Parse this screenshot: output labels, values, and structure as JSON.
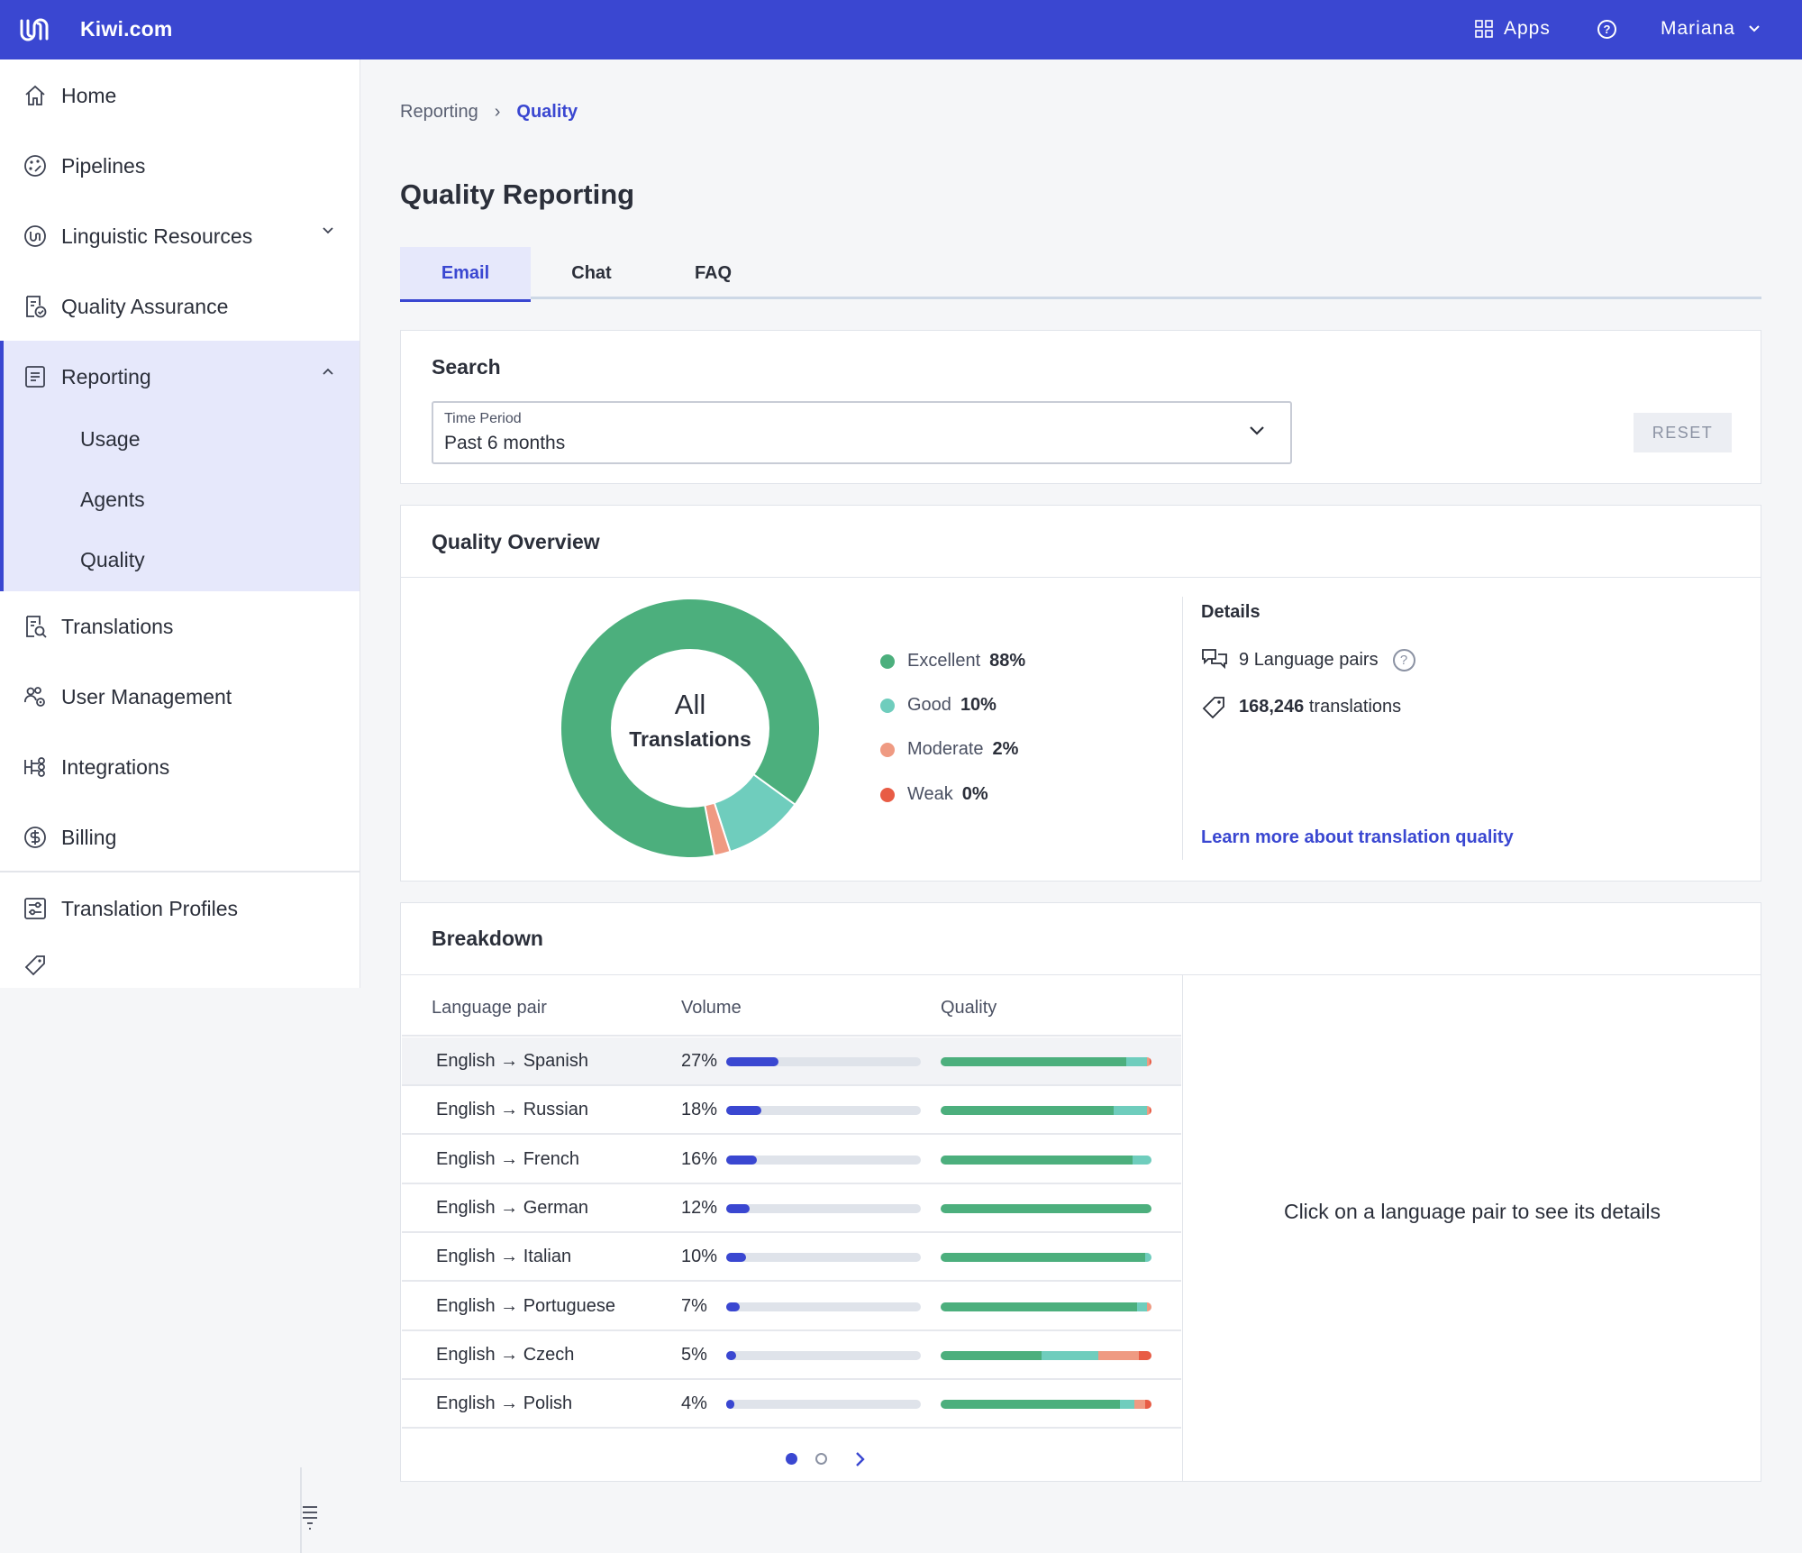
{
  "app": {
    "brand": "Kiwi.com",
    "apps_label": "Apps",
    "help_label": "?",
    "user_name": "Mariana"
  },
  "colors": {
    "primary": "#3a47d1",
    "excellent": "#4caf7d",
    "good": "#6fcdbd",
    "moderate": "#ef9a82",
    "weak": "#e85c45"
  },
  "sidebar": {
    "items": [
      {
        "label": "Home",
        "icon": "home-icon"
      },
      {
        "label": "Pipelines",
        "icon": "palette-icon"
      },
      {
        "label": "Linguistic Resources",
        "icon": "kiwi-brand-icon"
      },
      {
        "label": "Quality Assurance",
        "icon": "document-check-icon"
      },
      {
        "label": "Reporting",
        "icon": "report-icon"
      },
      {
        "label": "Translations",
        "icon": "document-search-icon"
      },
      {
        "label": "User Management",
        "icon": "users-gear-icon"
      },
      {
        "label": "Integrations",
        "icon": "integrations-icon"
      },
      {
        "label": "Billing",
        "icon": "dollar-icon"
      },
      {
        "label": "Translation Profiles",
        "icon": "sliders-icon"
      }
    ],
    "reporting_sub": [
      "Usage",
      "Agents",
      "Quality"
    ]
  },
  "breadcrumb": {
    "parent": "Reporting",
    "separator": "›",
    "current": "Quality"
  },
  "page_title": "Quality Reporting",
  "tabs": [
    "Email",
    "Chat",
    "FAQ"
  ],
  "search": {
    "title": "Search",
    "time_period_label": "Time Period",
    "time_period_value": "Past 6 months",
    "reset_label": "RESET"
  },
  "overview": {
    "title": "Quality Overview",
    "donut_center_line1": "All",
    "donut_center_line2": "Translations",
    "legend": [
      {
        "label": "Excellent",
        "pct": "88%",
        "value": 88,
        "color": "#4caf7d"
      },
      {
        "label": "Good",
        "pct": "10%",
        "value": 10,
        "color": "#6fcdbd"
      },
      {
        "label": "Moderate",
        "pct": "2%",
        "value": 2,
        "color": "#ef9a82"
      },
      {
        "label": "Weak",
        "pct": "0%",
        "value": 0,
        "color": "#e85c45"
      }
    ],
    "details_title": "Details",
    "language_pairs_count": "9",
    "language_pairs_label": "Language pairs",
    "translations_count": "168,246",
    "translations_label": "translations",
    "learn_more": "Learn more about translation quality"
  },
  "breakdown": {
    "title": "Breakdown",
    "columns": [
      "Language pair",
      "Volume",
      "Quality"
    ],
    "rows": [
      {
        "pair": "English → Spanish",
        "volume": "27%",
        "volume_value": 27,
        "quality": [
          88,
          10,
          1,
          1
        ]
      },
      {
        "pair": "English → Russian",
        "volume": "18%",
        "volume_value": 18,
        "quality": [
          82,
          16,
          1,
          1
        ]
      },
      {
        "pair": "English → French",
        "volume": "16%",
        "volume_value": 16,
        "quality": [
          91,
          9,
          0,
          0
        ]
      },
      {
        "pair": "English → German",
        "volume": "12%",
        "volume_value": 12,
        "quality": [
          100,
          0,
          0,
          0
        ]
      },
      {
        "pair": "English → Italian",
        "volume": "10%",
        "volume_value": 10,
        "quality": [
          97,
          3,
          0,
          0
        ]
      },
      {
        "pair": "English → Portuguese",
        "volume": "7%",
        "volume_value": 7,
        "quality": [
          93,
          5,
          2,
          0
        ]
      },
      {
        "pair": "English → Czech",
        "volume": "5%",
        "volume_value": 5,
        "quality": [
          48,
          27,
          19,
          6
        ]
      },
      {
        "pair": "English → Polish",
        "volume": "4%",
        "volume_value": 4,
        "quality": [
          85,
          7,
          5,
          3
        ]
      }
    ],
    "hint": "Click on a language pair to see its details",
    "pagination": {
      "pages": 2,
      "current": 1
    }
  }
}
